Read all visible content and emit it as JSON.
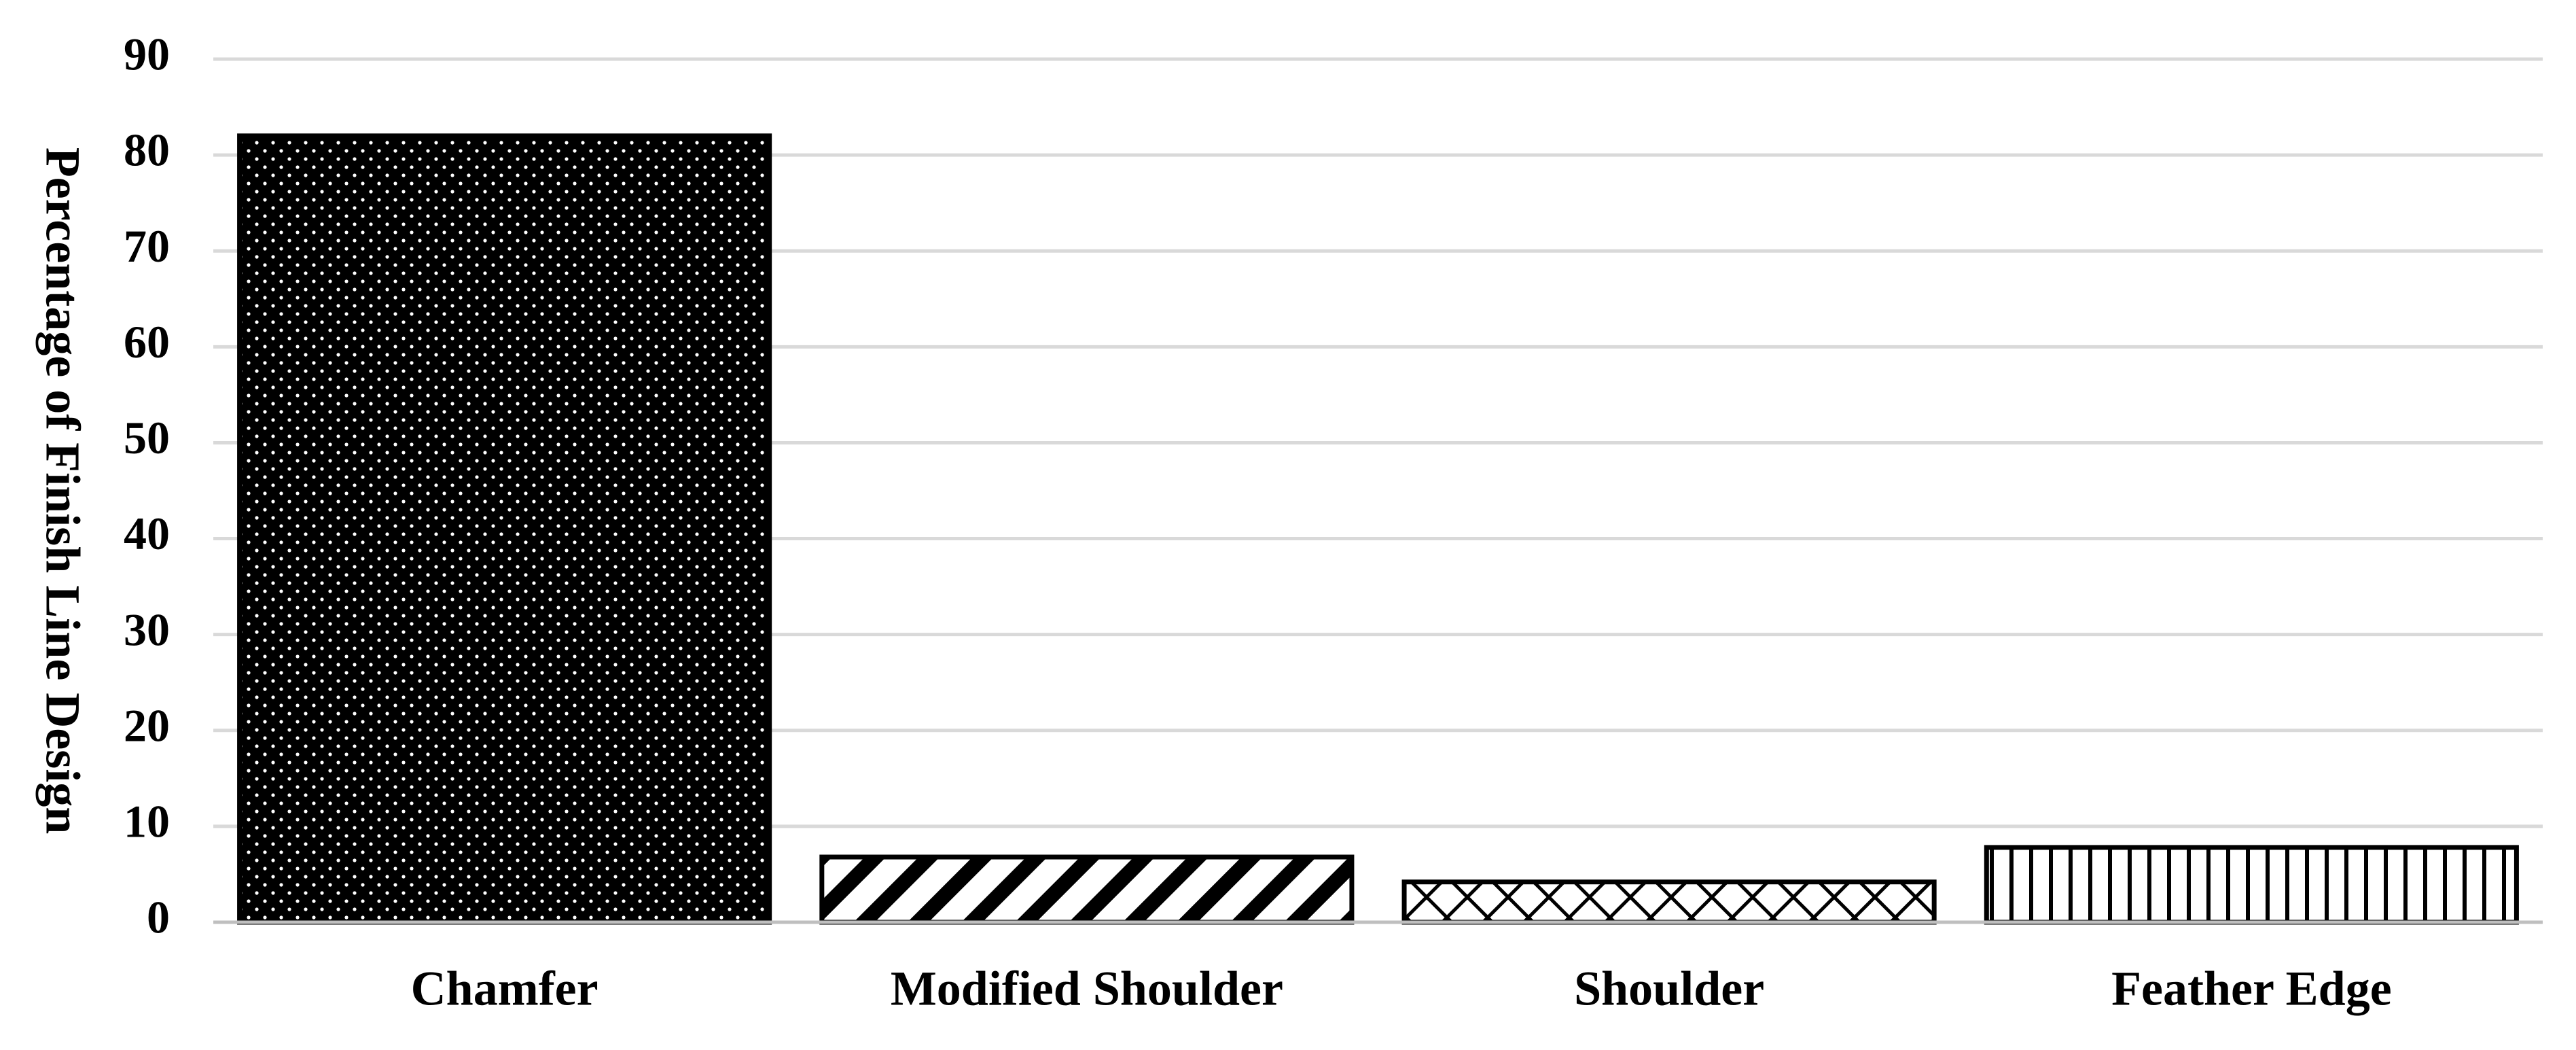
{
  "chart_data": {
    "type": "bar",
    "y_label": "Percentage of Finish Line Design",
    "categories": [
      "Chamfer",
      "Modified Shoulder",
      "Shoulder",
      "Feather Edge"
    ],
    "values": [
      82,
      6.8,
      4.2,
      7.8
    ],
    "patterns": [
      "dots",
      "diagonal",
      "crosshatch",
      "vertical"
    ],
    "color": "#000000",
    "ylim": [
      0,
      90
    ],
    "yticks": [
      0,
      10,
      20,
      30,
      40,
      50,
      60,
      70,
      80,
      90
    ],
    "grid": true
  }
}
